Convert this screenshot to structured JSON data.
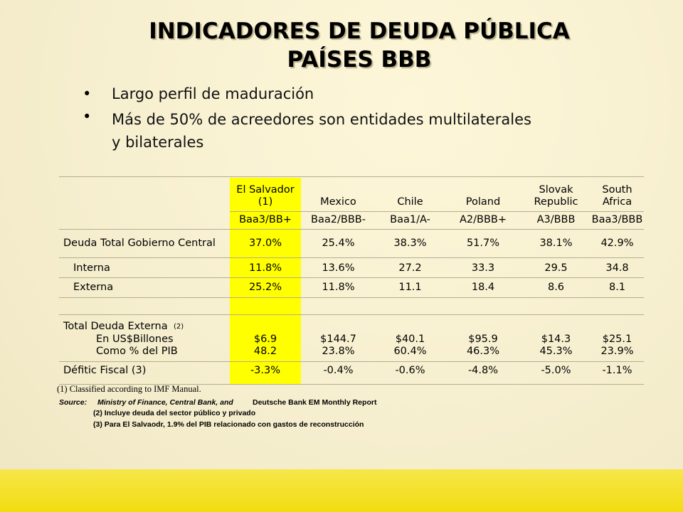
{
  "title": [
    "INDICADORES DE DEUDA PÚBLICA",
    "PAÍSES BBB"
  ],
  "bullets": [
    "Largo perfil de maduración",
    "Más de 50% de acreedores son entidades multilaterales y bilaterales"
  ],
  "table": {
    "columns": [
      [
        "El Salvador",
        "(1)"
      ],
      [
        "Mexico"
      ],
      [
        "Chile"
      ],
      [
        "Poland"
      ],
      [
        "Slovak",
        "Republic"
      ],
      [
        "South",
        "Africa"
      ]
    ],
    "ratings": [
      "Baa3/BB+",
      "Baa2/BBB-",
      "Baa1/A-",
      "A2/BBB+",
      "A3/BBB",
      "Baa3/BBB"
    ],
    "rows": [
      {
        "label": "Deuda Total Gobierno Central",
        "values": [
          "37.0%",
          "25.4%",
          "38.3%",
          "51.7%",
          "38.1%",
          "42.9%"
        ]
      },
      {
        "label": "Interna",
        "values": [
          "11.8%",
          "13.6%",
          "27.2",
          "33.3",
          "29.5",
          "34.8"
        ]
      },
      {
        "label": "Externa",
        "values": [
          "25.2%",
          "11.8%",
          "11.1",
          "18.4",
          "8.6",
          "8.1"
        ]
      },
      {
        "label": "Total Deuda Externa",
        "note": "(2)"
      },
      {
        "label": "En US$Billones",
        "values": [
          "$6.9",
          "$144.7",
          "$40.1",
          "$95.9",
          "$14.3",
          "$25.1"
        ]
      },
      {
        "label": "Como % del PIB",
        "values": [
          "48.2",
          "23.8%",
          "60.4%",
          "46.3%",
          "45.3%",
          "23.9%"
        ]
      },
      {
        "label": "Défitic Fiscal (3)",
        "values": [
          "-3.3%",
          "-0.4%",
          "-0.6%",
          "-4.8%",
          "-5.0%",
          "-1.1%"
        ]
      }
    ]
  },
  "footnotes": {
    "classified": "(1) Classified according to IMF Manual.",
    "source": [
      "Source:",
      "Ministry of Finance, Central Bank, and",
      "Deutsche Bank EM Monthly Report"
    ],
    "notes": [
      "(2) Incluye deuda del sector público y privado",
      "(3) Para El Salvaodr, 1.9% del PIB relacionado con gastos de reconstrucción"
    ]
  }
}
